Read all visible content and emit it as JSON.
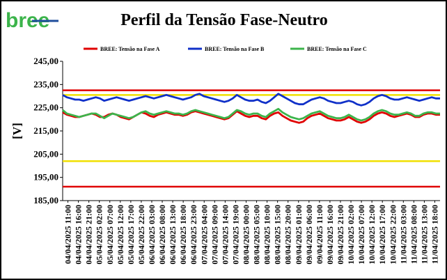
{
  "logo": {
    "text": "bree",
    "color": "#3cb44b",
    "accent": "#1f4e9b"
  },
  "colors": {
    "fase_a": "#e00000",
    "fase_b": "#1030c8",
    "fase_c": "#3cb44b",
    "limit_red": "#e00000",
    "limit_yellow": "#f0e000"
  },
  "chart_data": {
    "type": "line",
    "title": "Perfil da Tensão Fase-Neutro",
    "ylabel": "[V]",
    "xlabel": "",
    "ylim": [
      185,
      245
    ],
    "y_ticks": [
      "245,00",
      "235,00",
      "225,00",
      "215,00",
      "205,00",
      "195,00",
      "185,00"
    ],
    "x_ticks": [
      "04/04/2025 11:00",
      "04/04/2025 16:00",
      "04/04/2025 21:00",
      "05/04/2025 02:00",
      "05/04/2025 07:00",
      "05/04/2025 12:00",
      "05/04/2025 17:00",
      "05/04/2025 22:00",
      "06/04/2025 03:00",
      "06/04/2025 08:00",
      "06/04/2025 13:00",
      "06/04/2025 18:00",
      "06/04/2025 23:00",
      "07/04/2025 04:00",
      "07/04/2025 09:00",
      "07/04/2025 14:00",
      "07/04/2025 19:00",
      "08/04/2025 00:00",
      "08/04/2025 05:00",
      "08/04/2025 10:00",
      "08/04/2025 15:00",
      "08/04/2025 20:00",
      "09/04/2025 01:00",
      "09/04/2025 06:00",
      "09/04/2025 11:00",
      "09/04/2025 16:00",
      "09/04/2025 21:00",
      "10/04/2025 02:00",
      "10/04/2025 07:00",
      "10/04/2025 12:00",
      "10/04/2025 17:00",
      "10/04/2025 22:00",
      "11/04/2025 03:00",
      "11/04/2025 08:00",
      "11/04/2025 13:00",
      "11/04/2025 18:00"
    ],
    "legend_position": "top",
    "reference_lines": [
      {
        "value": 232.5,
        "color": "#e00000"
      },
      {
        "value": 230.5,
        "color": "#f0e000"
      },
      {
        "value": 202.0,
        "color": "#f0e000"
      },
      {
        "value": 191.0,
        "color": "#e00000"
      }
    ],
    "series": [
      {
        "name": "BREE: Tensão na Fase A",
        "color": "#e00000",
        "values": [
          223.0,
          222.0,
          221.5,
          221.0,
          221.0,
          221.5,
          222.0,
          222.5,
          222.0,
          221.0,
          221.0,
          222.0,
          222.5,
          222.0,
          221.0,
          220.5,
          220.0,
          221.0,
          222.0,
          223.0,
          222.5,
          221.5,
          221.0,
          222.0,
          222.5,
          223.0,
          222.5,
          222.0,
          222.0,
          221.5,
          222.0,
          223.0,
          223.5,
          223.0,
          222.5,
          222.0,
          221.5,
          221.0,
          220.5,
          220.0,
          220.5,
          222.0,
          223.5,
          222.5,
          221.5,
          221.0,
          221.5,
          221.5,
          220.5,
          220.0,
          221.5,
          222.5,
          223.0,
          221.5,
          220.5,
          219.5,
          219.0,
          218.5,
          219.0,
          220.5,
          221.5,
          222.0,
          222.5,
          221.5,
          220.5,
          220.0,
          219.5,
          219.5,
          220.0,
          221.0,
          220.0,
          219.0,
          218.5,
          219.0,
          220.0,
          221.5,
          222.5,
          223.0,
          222.5,
          221.5,
          221.0,
          221.5,
          222.0,
          222.5,
          222.0,
          221.0,
          221.0,
          222.0,
          222.5,
          222.5,
          222.0,
          222.0
        ]
      },
      {
        "name": "BREE: Tensão na Fase B",
        "color": "#1030c8",
        "values": [
          230.5,
          229.5,
          229.0,
          228.5,
          228.5,
          228.0,
          228.5,
          229.0,
          229.5,
          229.0,
          228.0,
          228.5,
          229.0,
          229.5,
          229.0,
          228.5,
          228.0,
          228.5,
          229.0,
          229.5,
          230.0,
          229.5,
          229.0,
          229.5,
          230.0,
          230.5,
          230.0,
          229.5,
          229.0,
          228.5,
          229.0,
          229.5,
          230.5,
          231.0,
          230.0,
          229.5,
          229.0,
          228.5,
          228.0,
          227.5,
          228.0,
          229.0,
          230.5,
          229.5,
          228.5,
          228.0,
          228.0,
          228.5,
          227.5,
          227.0,
          228.0,
          229.5,
          231.0,
          230.0,
          229.0,
          228.0,
          227.0,
          226.5,
          226.5,
          227.5,
          228.5,
          229.0,
          229.5,
          229.0,
          228.0,
          227.5,
          227.0,
          227.0,
          227.5,
          228.0,
          227.5,
          226.5,
          226.0,
          226.5,
          227.5,
          229.0,
          230.0,
          230.5,
          230.0,
          229.0,
          228.5,
          228.5,
          229.0,
          229.5,
          229.0,
          228.5,
          228.0,
          228.5,
          229.0,
          229.5,
          229.0,
          229.0
        ]
      },
      {
        "name": "BREE: Tensão na Fase C",
        "color": "#3cb44b",
        "values": [
          224.0,
          222.5,
          222.0,
          221.5,
          221.0,
          221.5,
          222.0,
          222.5,
          222.5,
          221.5,
          220.5,
          221.5,
          222.5,
          222.0,
          221.5,
          221.0,
          220.5,
          221.0,
          222.0,
          223.0,
          223.5,
          222.5,
          222.0,
          222.5,
          223.0,
          223.5,
          223.0,
          222.5,
          222.5,
          222.0,
          222.5,
          223.5,
          224.0,
          223.5,
          223.0,
          222.5,
          222.0,
          221.5,
          221.0,
          220.5,
          221.0,
          222.5,
          224.0,
          223.5,
          222.5,
          222.0,
          222.5,
          222.5,
          221.5,
          221.0,
          222.5,
          223.5,
          224.5,
          223.0,
          222.0,
          221.0,
          220.5,
          220.0,
          220.5,
          221.5,
          222.5,
          223.0,
          223.5,
          222.5,
          221.5,
          221.0,
          220.5,
          220.5,
          221.0,
          222.0,
          221.0,
          220.0,
          219.5,
          220.0,
          221.0,
          222.5,
          223.5,
          224.0,
          223.5,
          222.5,
          222.0,
          222.0,
          222.5,
          223.0,
          222.5,
          221.5,
          221.5,
          222.5,
          223.0,
          223.0,
          222.5,
          222.5
        ]
      }
    ]
  }
}
